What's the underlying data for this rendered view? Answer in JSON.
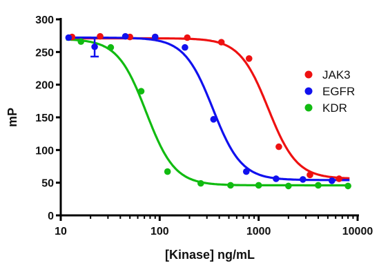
{
  "chart_data": {
    "type": "scatter",
    "title": "",
    "xlabel": "[Kinase] ng/mL",
    "ylabel": "mP",
    "xscale": "log",
    "xlim": [
      10,
      10000
    ],
    "ylim": [
      0,
      300
    ],
    "xticks": [
      10,
      100,
      1000,
      10000
    ],
    "xtick_labels": [
      "10",
      "100",
      "1000",
      "10000"
    ],
    "yticks": [
      0,
      50,
      100,
      150,
      200,
      250,
      300
    ],
    "ytick_labels": [
      "0",
      "50",
      "100",
      "150",
      "200",
      "250",
      "300"
    ],
    "grid": false,
    "legend_position": "right",
    "series": [
      {
        "name": "JAK3",
        "color": "#ee1111",
        "x": [
          13,
          25,
          50,
          90,
          190,
          420,
          800,
          1600,
          3300,
          6500
        ],
        "y": [
          273,
          274,
          273,
          273,
          272,
          265,
          240,
          105,
          62,
          56
        ],
        "fit": {
          "top": 271,
          "bottom": 56,
          "ec50": 1250,
          "hill": 3.0
        }
      },
      {
        "name": "EGFR",
        "color": "#1111ee",
        "x": [
          12,
          22,
          45,
          90,
          180,
          350,
          750,
          1500,
          2800,
          5500
        ],
        "y": [
          272,
          258,
          274,
          273,
          257,
          147,
          67,
          56,
          55,
          53
        ],
        "y_error": [
          null,
          15,
          null,
          null,
          null,
          null,
          null,
          null,
          null,
          null
        ],
        "fit": {
          "top": 272,
          "bottom": 54,
          "ec50": 345,
          "hill": 3.0
        }
      },
      {
        "name": "KDR",
        "color": "#11bb11",
        "x": [
          16,
          32,
          65,
          120,
          260,
          520,
          1000,
          2000,
          4000,
          8000
        ],
        "y": [
          266,
          257,
          190,
          67,
          49,
          46,
          46,
          45,
          46,
          45
        ],
        "fit": {
          "top": 270,
          "bottom": 46,
          "ec50": 73,
          "hill": 3.0
        }
      }
    ]
  }
}
